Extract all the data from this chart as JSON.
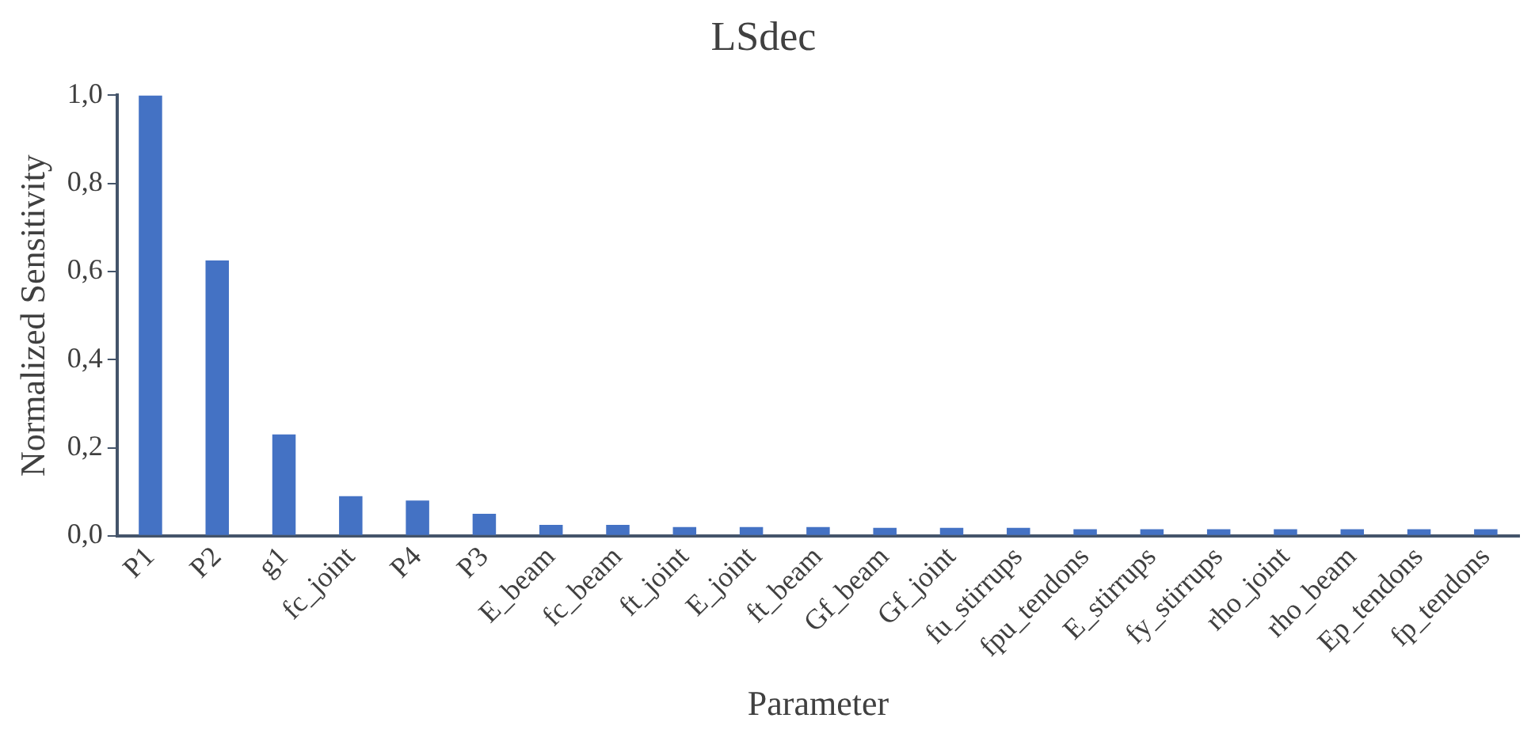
{
  "chart_data": {
    "type": "bar",
    "title": "LSdec",
    "xlabel": "Parameter",
    "ylabel": "Normalized Sensitivity",
    "categories": [
      "P1",
      "P2",
      "g1",
      "fc_joint",
      "P4",
      "P3",
      "E_beam",
      "fc_beam",
      "ft_joint",
      "E_joint",
      "ft_beam",
      "Gf_beam",
      "Gf_joint",
      "fu_stirrups",
      "fpu_tendons",
      "E_stirrups",
      "fy_stirrups",
      "rho_joint",
      "rho_beam",
      "Ep_tendons",
      "fp_tendons"
    ],
    "values": [
      1.0,
      0.625,
      0.23,
      0.09,
      0.08,
      0.05,
      0.025,
      0.025,
      0.02,
      0.02,
      0.02,
      0.018,
      0.018,
      0.018,
      0.015,
      0.015,
      0.015,
      0.015,
      0.015,
      0.015,
      0.015
    ],
    "color": "#4472c4",
    "ylim": [
      0,
      1.0
    ],
    "yticks": [
      {
        "value": 0,
        "label": "0,0"
      },
      {
        "value": 0.2,
        "label": "0,2"
      },
      {
        "value": 0.4,
        "label": "0,4"
      },
      {
        "value": 0.6,
        "label": "0,6"
      },
      {
        "value": 0.8,
        "label": "0,8"
      },
      {
        "value": 1.0,
        "label": "1,0"
      }
    ],
    "grid": false
  }
}
